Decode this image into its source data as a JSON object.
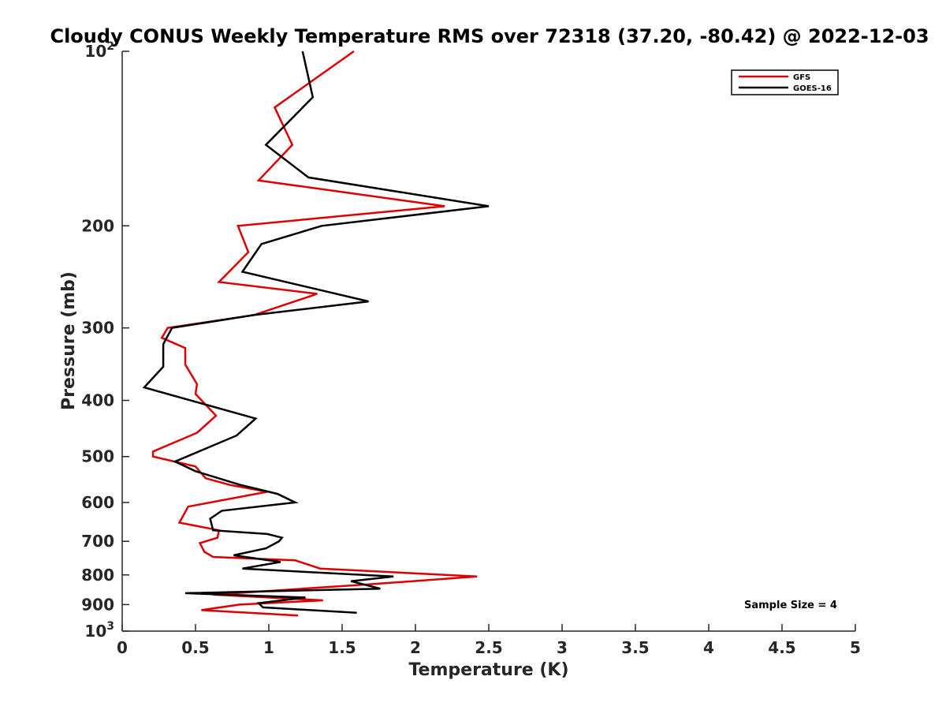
{
  "chart_data": {
    "type": "line",
    "title": "Cloudy CONUS Weekly Temperature RMS over 72318 (37.20, -80.42) @ 2022-12-03",
    "xlabel": "Temperature (K)",
    "ylabel": "Pressure (mb)",
    "xlim": [
      0,
      5
    ],
    "ylim": [
      100,
      1000
    ],
    "yscale": "log",
    "y_reversed": true,
    "grid": false,
    "legend_position": "top-right",
    "annotation": "Sample Size = 4",
    "x_ticks": [
      "0",
      "0.5",
      "1",
      "1.5",
      "2",
      "2.5",
      "3",
      "3.5",
      "4",
      "4.5",
      "5"
    ],
    "x_tick_values": [
      0,
      0.5,
      1,
      1.5,
      2,
      2.5,
      3,
      3.5,
      4,
      4.5,
      5
    ],
    "y_ticks": [
      {
        "value": 100,
        "base": "10",
        "exp": "2"
      },
      {
        "value": 200,
        "label": "200"
      },
      {
        "value": 300,
        "label": "300"
      },
      {
        "value": 400,
        "label": "400"
      },
      {
        "value": 500,
        "label": "500"
      },
      {
        "value": 600,
        "label": "600"
      },
      {
        "value": 700,
        "label": "700"
      },
      {
        "value": 800,
        "label": "800"
      },
      {
        "value": 900,
        "label": "900"
      },
      {
        "value": 1000,
        "base": "10",
        "exp": "3"
      }
    ],
    "series": [
      {
        "name": "GFS",
        "color": "#dd0000",
        "points": [
          [
            1.58,
            100
          ],
          [
            1.04,
            125
          ],
          [
            1.16,
            145
          ],
          [
            0.93,
            167
          ],
          [
            2.2,
            185
          ],
          [
            0.79,
            200
          ],
          [
            0.86,
            222
          ],
          [
            0.66,
            250
          ],
          [
            1.33,
            262
          ],
          [
            0.9,
            285
          ],
          [
            0.31,
            300
          ],
          [
            0.27,
            312
          ],
          [
            0.43,
            325
          ],
          [
            0.43,
            347
          ],
          [
            0.51,
            375
          ],
          [
            0.5,
            390
          ],
          [
            0.64,
            425
          ],
          [
            0.51,
            455
          ],
          [
            0.21,
            490
          ],
          [
            0.21,
            500
          ],
          [
            0.5,
            520
          ],
          [
            0.57,
            545
          ],
          [
            0.74,
            560
          ],
          [
            0.99,
            575
          ],
          [
            0.45,
            610
          ],
          [
            0.39,
            650
          ],
          [
            0.66,
            670
          ],
          [
            0.65,
            690
          ],
          [
            0.53,
            705
          ],
          [
            0.56,
            730
          ],
          [
            0.62,
            745
          ],
          [
            1.18,
            755
          ],
          [
            1.35,
            780
          ],
          [
            2.42,
            805
          ],
          [
            1.7,
            830
          ],
          [
            0.62,
            865
          ],
          [
            1.37,
            885
          ],
          [
            0.8,
            900
          ],
          [
            0.54,
            920
          ],
          [
            1.2,
            940
          ]
        ]
      },
      {
        "name": "GOES-16",
        "color": "#000000",
        "points": [
          [
            1.23,
            100
          ],
          [
            1.3,
            120
          ],
          [
            0.98,
            145
          ],
          [
            1.27,
            165
          ],
          [
            2.5,
            185
          ],
          [
            1.36,
            200
          ],
          [
            0.95,
            215
          ],
          [
            0.82,
            240
          ],
          [
            1.68,
            270
          ],
          [
            0.9,
            285
          ],
          [
            0.34,
            300
          ],
          [
            0.28,
            320
          ],
          [
            0.28,
            350
          ],
          [
            0.15,
            380
          ],
          [
            0.91,
            430
          ],
          [
            0.78,
            460
          ],
          [
            0.36,
            510
          ],
          [
            0.5,
            530
          ],
          [
            0.81,
            560
          ],
          [
            1.06,
            580
          ],
          [
            1.18,
            600
          ],
          [
            0.68,
            620
          ],
          [
            0.6,
            640
          ],
          [
            0.62,
            670
          ],
          [
            0.99,
            680
          ],
          [
            1.09,
            690
          ],
          [
            1.07,
            700
          ],
          [
            0.98,
            720
          ],
          [
            0.76,
            740
          ],
          [
            1.08,
            760
          ],
          [
            0.82,
            780
          ],
          [
            1.85,
            805
          ],
          [
            1.56,
            820
          ],
          [
            1.76,
            845
          ],
          [
            0.43,
            860
          ],
          [
            1.25,
            875
          ],
          [
            0.93,
            895
          ],
          [
            0.96,
            910
          ],
          [
            1.6,
            930
          ]
        ]
      }
    ]
  }
}
